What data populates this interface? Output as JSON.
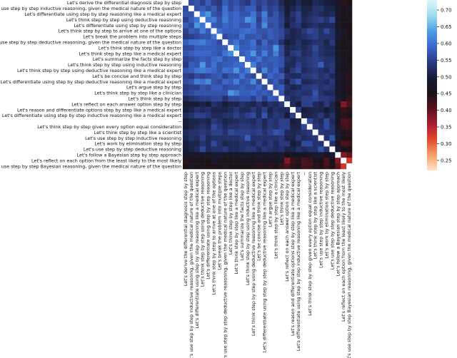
{
  "chart_data": {
    "type": "heatmap",
    "title": "",
    "xlabel": "",
    "ylabel": "",
    "labels": [
      "Let's derive the differential diagnosis step by step",
      "Let's use step by step inductive reasoning, given the medical nature of the question",
      "Let's differentiate using step by step reasoning like a medical expert",
      "Let's think step by step using deductive reasoning",
      "Let's differentiate using step by step reasoning",
      "Let's think step by step to arrive at one of the options",
      "Let's break the problem into multiple steps",
      "Let's use step by step deductive reasoning, given the medical nature of the question",
      "Let's think step by step like a doctor",
      "Let's think step by step like a medical expert",
      "Let's summarize the facts step by step",
      "Let's think step by step using inductive reasoning",
      "Let's think step by step using deductive reasoning like a medical expert",
      "Let's be concise and think step by step",
      "Let's differentiate using step by step deductive reasoning like a medical expert",
      "Let's argue step by step",
      "Let's think step by step like a clinician",
      "Let's think step by step",
      "Let's reflect on each answer option step by step",
      "Let's reason and differentiate options step by step like a medical expert",
      "Let's differentiate using step by step inductive reasoning like a medical expert",
      "--",
      "Let's think step by step given every option equal consideration",
      "Let's think step by step like a scientist",
      "Let's use step by step inductive reasoning",
      "Let's work by elimination step by step",
      "Let's use step by step deductive reasoning",
      "Let's follow a Bayesian step by step approach",
      "Let's reflect on each option from the least likely to the most likely",
      "Let's use step by step Bayesian reasoning, given the medical nature of the question"
    ],
    "values": [
      [
        1.0,
        0.56,
        0.57,
        0.55,
        0.58,
        0.55,
        0.54,
        0.58,
        0.56,
        0.57,
        0.55,
        0.54,
        0.57,
        0.55,
        0.56,
        0.54,
        0.55,
        0.52,
        0.49,
        0.5,
        0.52,
        0.5,
        0.5,
        0.52,
        0.51,
        0.5,
        0.5,
        0.48,
        0.44,
        0.45
      ],
      [
        0.56,
        1.0,
        0.57,
        0.58,
        0.56,
        0.58,
        0.55,
        0.6,
        0.56,
        0.58,
        0.56,
        0.58,
        0.58,
        0.54,
        0.57,
        0.55,
        0.56,
        0.53,
        0.5,
        0.51,
        0.53,
        0.51,
        0.51,
        0.53,
        0.53,
        0.51,
        0.51,
        0.48,
        0.46,
        0.47
      ],
      [
        0.57,
        0.57,
        1.0,
        0.6,
        0.63,
        0.57,
        0.56,
        0.6,
        0.58,
        0.59,
        0.57,
        0.57,
        0.6,
        0.56,
        0.61,
        0.55,
        0.57,
        0.54,
        0.5,
        0.53,
        0.55,
        0.51,
        0.52,
        0.53,
        0.52,
        0.51,
        0.52,
        0.48,
        0.45,
        0.46
      ],
      [
        0.55,
        0.58,
        0.6,
        1.0,
        0.6,
        0.61,
        0.57,
        0.61,
        0.58,
        0.59,
        0.58,
        0.63,
        0.61,
        0.55,
        0.6,
        0.57,
        0.57,
        0.55,
        0.51,
        0.52,
        0.55,
        0.52,
        0.53,
        0.54,
        0.55,
        0.53,
        0.56,
        0.48,
        0.46,
        0.46
      ],
      [
        0.58,
        0.56,
        0.63,
        0.6,
        1.0,
        0.58,
        0.57,
        0.59,
        0.58,
        0.59,
        0.57,
        0.57,
        0.6,
        0.56,
        0.62,
        0.56,
        0.57,
        0.55,
        0.5,
        0.53,
        0.54,
        0.51,
        0.52,
        0.53,
        0.52,
        0.52,
        0.52,
        0.48,
        0.45,
        0.45
      ],
      [
        0.55,
        0.58,
        0.57,
        0.61,
        0.58,
        1.0,
        0.6,
        0.58,
        0.58,
        0.58,
        0.59,
        0.6,
        0.59,
        0.57,
        0.57,
        0.58,
        0.57,
        0.56,
        0.53,
        0.51,
        0.52,
        0.54,
        0.56,
        0.55,
        0.53,
        0.56,
        0.53,
        0.49,
        0.48,
        0.45
      ],
      [
        0.54,
        0.55,
        0.56,
        0.57,
        0.57,
        0.6,
        1.0,
        0.56,
        0.57,
        0.57,
        0.6,
        0.57,
        0.57,
        0.58,
        0.56,
        0.58,
        0.57,
        0.56,
        0.52,
        0.51,
        0.52,
        0.53,
        0.54,
        0.55,
        0.53,
        0.53,
        0.53,
        0.5,
        0.47,
        0.45
      ],
      [
        0.58,
        0.6,
        0.6,
        0.61,
        0.59,
        0.58,
        0.56,
        1.0,
        0.58,
        0.6,
        0.57,
        0.58,
        0.6,
        0.55,
        0.59,
        0.56,
        0.57,
        0.53,
        0.5,
        0.51,
        0.53,
        0.51,
        0.52,
        0.53,
        0.53,
        0.51,
        0.54,
        0.48,
        0.45,
        0.47
      ],
      [
        0.56,
        0.56,
        0.58,
        0.58,
        0.58,
        0.58,
        0.57,
        0.58,
        1.0,
        0.62,
        0.58,
        0.58,
        0.59,
        0.57,
        0.58,
        0.57,
        0.63,
        0.56,
        0.51,
        0.52,
        0.53,
        0.52,
        0.53,
        0.56,
        0.53,
        0.52,
        0.52,
        0.48,
        0.46,
        0.45
      ],
      [
        0.57,
        0.58,
        0.59,
        0.59,
        0.59,
        0.58,
        0.57,
        0.6,
        0.62,
        1.0,
        0.58,
        0.59,
        0.63,
        0.57,
        0.61,
        0.57,
        0.61,
        0.56,
        0.51,
        0.54,
        0.55,
        0.52,
        0.53,
        0.55,
        0.53,
        0.52,
        0.52,
        0.48,
        0.46,
        0.46
      ],
      [
        0.55,
        0.56,
        0.57,
        0.58,
        0.57,
        0.59,
        0.6,
        0.57,
        0.58,
        0.58,
        1.0,
        0.59,
        0.58,
        0.6,
        0.57,
        0.58,
        0.58,
        0.57,
        0.53,
        0.52,
        0.53,
        0.53,
        0.54,
        0.55,
        0.54,
        0.53,
        0.53,
        0.49,
        0.47,
        0.45
      ],
      [
        0.54,
        0.58,
        0.57,
        0.63,
        0.57,
        0.6,
        0.57,
        0.58,
        0.58,
        0.59,
        0.59,
        1.0,
        0.61,
        0.57,
        0.58,
        0.57,
        0.58,
        0.57,
        0.52,
        0.52,
        0.55,
        0.53,
        0.54,
        0.55,
        0.58,
        0.53,
        0.54,
        0.49,
        0.47,
        0.46
      ],
      [
        0.57,
        0.58,
        0.6,
        0.61,
        0.6,
        0.59,
        0.57,
        0.6,
        0.59,
        0.63,
        0.58,
        0.61,
        1.0,
        0.56,
        0.62,
        0.57,
        0.59,
        0.55,
        0.51,
        0.54,
        0.56,
        0.52,
        0.53,
        0.54,
        0.53,
        0.52,
        0.54,
        0.48,
        0.46,
        0.46
      ],
      [
        0.55,
        0.54,
        0.56,
        0.55,
        0.56,
        0.57,
        0.58,
        0.55,
        0.57,
        0.57,
        0.6,
        0.57,
        0.56,
        1.0,
        0.56,
        0.59,
        0.57,
        0.58,
        0.53,
        0.52,
        0.52,
        0.54,
        0.54,
        0.55,
        0.53,
        0.54,
        0.52,
        0.49,
        0.47,
        0.44
      ],
      [
        0.56,
        0.57,
        0.61,
        0.6,
        0.62,
        0.57,
        0.56,
        0.59,
        0.58,
        0.61,
        0.57,
        0.58,
        0.62,
        0.56,
        1.0,
        0.56,
        0.58,
        0.55,
        0.51,
        0.55,
        0.57,
        0.52,
        0.52,
        0.53,
        0.53,
        0.52,
        0.54,
        0.48,
        0.46,
        0.46
      ],
      [
        0.54,
        0.55,
        0.55,
        0.57,
        0.56,
        0.58,
        0.58,
        0.56,
        0.57,
        0.57,
        0.58,
        0.57,
        0.57,
        0.59,
        0.56,
        1.0,
        0.57,
        0.58,
        0.53,
        0.51,
        0.52,
        0.54,
        0.54,
        0.55,
        0.53,
        0.54,
        0.53,
        0.49,
        0.47,
        0.44
      ],
      [
        0.55,
        0.56,
        0.57,
        0.57,
        0.57,
        0.57,
        0.57,
        0.57,
        0.63,
        0.61,
        0.58,
        0.58,
        0.59,
        0.57,
        0.58,
        0.57,
        1.0,
        0.57,
        0.52,
        0.53,
        0.54,
        0.53,
        0.53,
        0.57,
        0.53,
        0.52,
        0.52,
        0.48,
        0.46,
        0.45
      ],
      [
        0.52,
        0.53,
        0.54,
        0.55,
        0.55,
        0.56,
        0.56,
        0.53,
        0.56,
        0.56,
        0.57,
        0.57,
        0.55,
        0.58,
        0.55,
        0.58,
        0.57,
        1.0,
        0.54,
        0.52,
        0.53,
        0.55,
        0.55,
        0.56,
        0.54,
        0.54,
        0.53,
        0.49,
        0.47,
        0.43
      ],
      [
        0.49,
        0.5,
        0.5,
        0.51,
        0.5,
        0.53,
        0.52,
        0.5,
        0.51,
        0.51,
        0.53,
        0.52,
        0.51,
        0.53,
        0.51,
        0.53,
        0.52,
        0.54,
        1.0,
        0.52,
        0.5,
        0.55,
        0.55,
        0.52,
        0.51,
        0.54,
        0.51,
        0.46,
        0.38,
        0.41
      ],
      [
        0.5,
        0.51,
        0.53,
        0.52,
        0.53,
        0.51,
        0.51,
        0.51,
        0.52,
        0.54,
        0.52,
        0.52,
        0.54,
        0.52,
        0.55,
        0.51,
        0.53,
        0.52,
        0.52,
        1.0,
        0.55,
        0.5,
        0.51,
        0.51,
        0.51,
        0.5,
        0.51,
        0.47,
        0.43,
        0.44
      ],
      [
        0.52,
        0.53,
        0.55,
        0.55,
        0.54,
        0.52,
        0.52,
        0.53,
        0.53,
        0.55,
        0.53,
        0.55,
        0.56,
        0.52,
        0.57,
        0.52,
        0.54,
        0.53,
        0.5,
        0.55,
        1.0,
        0.51,
        0.51,
        0.52,
        0.54,
        0.51,
        0.53,
        0.47,
        0.44,
        0.45
      ],
      [
        0.5,
        0.51,
        0.51,
        0.52,
        0.51,
        0.54,
        0.53,
        0.51,
        0.52,
        0.52,
        0.53,
        0.53,
        0.52,
        0.54,
        0.52,
        0.54,
        0.53,
        0.55,
        0.55,
        0.5,
        0.51,
        1.0,
        0.56,
        0.53,
        0.52,
        0.56,
        0.52,
        0.47,
        0.41,
        0.42
      ],
      [
        0.5,
        0.51,
        0.52,
        0.53,
        0.52,
        0.56,
        0.54,
        0.52,
        0.53,
        0.53,
        0.54,
        0.54,
        0.53,
        0.54,
        0.52,
        0.54,
        0.53,
        0.55,
        0.55,
        0.51,
        0.51,
        0.56,
        1.0,
        0.54,
        0.53,
        0.56,
        0.53,
        0.48,
        0.42,
        0.42
      ],
      [
        0.52,
        0.53,
        0.53,
        0.54,
        0.53,
        0.55,
        0.55,
        0.53,
        0.56,
        0.55,
        0.55,
        0.55,
        0.54,
        0.55,
        0.53,
        0.55,
        0.57,
        0.56,
        0.52,
        0.51,
        0.52,
        0.53,
        0.54,
        1.0,
        0.54,
        0.53,
        0.53,
        0.49,
        0.45,
        0.44
      ],
      [
        0.51,
        0.53,
        0.52,
        0.55,
        0.52,
        0.53,
        0.53,
        0.53,
        0.53,
        0.53,
        0.54,
        0.58,
        0.53,
        0.53,
        0.53,
        0.53,
        0.53,
        0.54,
        0.51,
        0.51,
        0.54,
        0.52,
        0.53,
        0.54,
        1.0,
        0.53,
        0.57,
        0.49,
        0.45,
        0.45
      ],
      [
        0.5,
        0.51,
        0.51,
        0.53,
        0.52,
        0.56,
        0.53,
        0.51,
        0.52,
        0.52,
        0.53,
        0.53,
        0.52,
        0.54,
        0.52,
        0.54,
        0.52,
        0.54,
        0.54,
        0.5,
        0.51,
        0.56,
        0.56,
        0.53,
        0.53,
        1.0,
        0.53,
        0.47,
        0.41,
        0.42
      ],
      [
        0.5,
        0.51,
        0.52,
        0.56,
        0.52,
        0.53,
        0.53,
        0.54,
        0.52,
        0.52,
        0.53,
        0.54,
        0.54,
        0.52,
        0.54,
        0.53,
        0.52,
        0.53,
        0.51,
        0.51,
        0.53,
        0.52,
        0.53,
        0.53,
        0.57,
        0.53,
        1.0,
        0.49,
        0.45,
        0.45
      ],
      [
        0.48,
        0.48,
        0.48,
        0.48,
        0.48,
        0.49,
        0.5,
        0.48,
        0.48,
        0.48,
        0.49,
        0.49,
        0.48,
        0.49,
        0.48,
        0.49,
        0.48,
        0.49,
        0.46,
        0.47,
        0.47,
        0.47,
        0.48,
        0.49,
        0.49,
        0.47,
        0.49,
        1.0,
        0.38,
        0.4
      ],
      [
        0.44,
        0.46,
        0.45,
        0.46,
        0.45,
        0.48,
        0.47,
        0.45,
        0.46,
        0.46,
        0.47,
        0.47,
        0.46,
        0.47,
        0.46,
        0.47,
        0.46,
        0.47,
        0.38,
        0.43,
        0.44,
        0.41,
        0.42,
        0.45,
        0.45,
        0.41,
        0.45,
        0.38,
        1.0,
        0.33
      ],
      [
        0.45,
        0.47,
        0.46,
        0.46,
        0.45,
        0.45,
        0.45,
        0.47,
        0.45,
        0.46,
        0.45,
        0.46,
        0.46,
        0.44,
        0.46,
        0.44,
        0.45,
        0.43,
        0.41,
        0.44,
        0.45,
        0.42,
        0.42,
        0.44,
        0.45,
        0.42,
        0.45,
        0.4,
        0.33,
        1.0
      ]
    ],
    "diagonal_note": "",
    "color_scale": {
      "name": "icefire",
      "vmin": 0.22,
      "vmax": 0.73,
      "ticks": [
        "0.25",
        "0.30",
        "0.35",
        "0.40",
        "0.45",
        "0.50",
        "0.55",
        "0.60",
        "0.65",
        "0.70"
      ],
      "stops": [
        "#ffe3c4",
        "#f6a06b",
        "#e3492e",
        "#a81d32",
        "#54121e",
        "#1b1218",
        "#161c36",
        "#2b3a82",
        "#3b68cc",
        "#4aa0e3",
        "#a0dcf0",
        "#dff5fb"
      ]
    },
    "diagonal_color": "#ffffff",
    "grid": false,
    "legend": "colorbar-right"
  }
}
